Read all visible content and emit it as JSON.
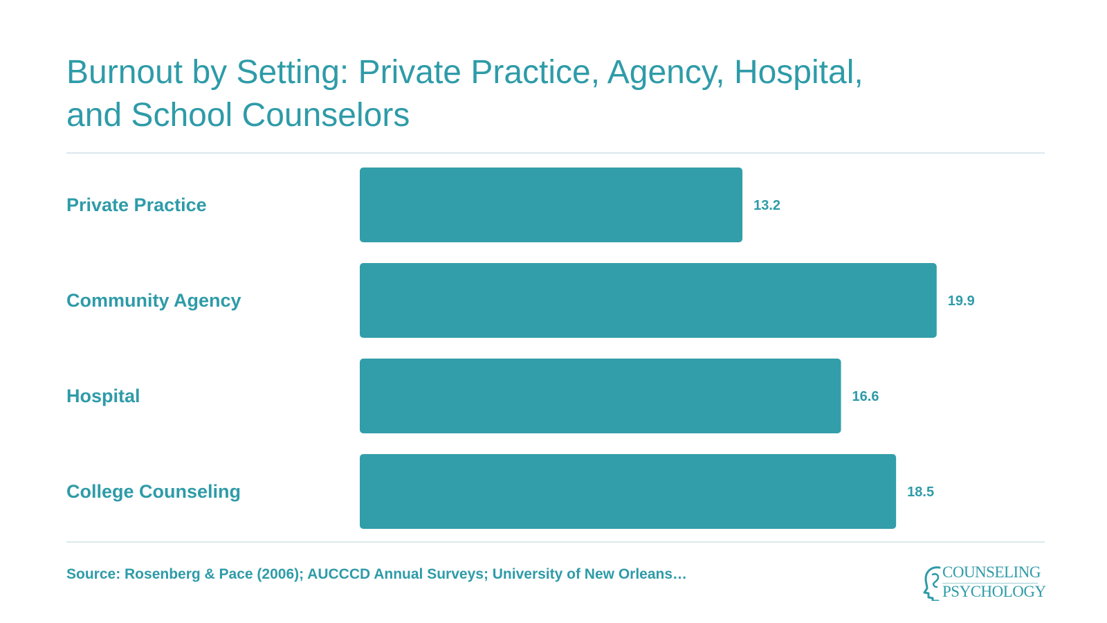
{
  "chart_data": {
    "type": "bar",
    "orientation": "horizontal",
    "title": "Burnout by Setting: Private Practice, Agency, Hospital, and School Counselors",
    "categories": [
      "Private Practice",
      "Community Agency",
      "Hospital",
      "College Counseling"
    ],
    "values": [
      13.2,
      19.9,
      16.6,
      18.5
    ],
    "value_labels": [
      "13.2",
      "19.9",
      "16.6",
      "18.5"
    ],
    "xlim": [
      0,
      24
    ],
    "grid": false,
    "legend": "none",
    "bar_color": "#329ea9",
    "text_color": "#2e9ba8"
  },
  "footer": {
    "source": "Source: Rosenberg & Pace (2006); AUCCCD Annual Surveys; University of New Orleans…"
  },
  "logo": {
    "line1": "COUNSELING",
    "line2": "PSYCHOLOGY",
    "icon": "head-profile-icon"
  }
}
